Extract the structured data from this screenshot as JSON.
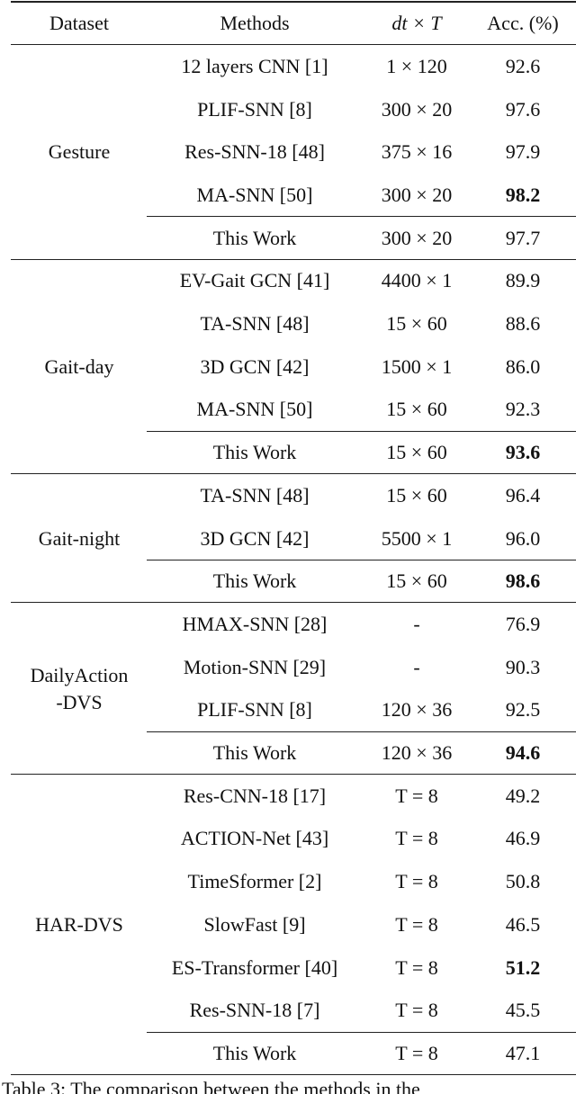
{
  "table": {
    "header": [
      "Dataset",
      "Methods",
      "dt × T",
      "Acc. (%)"
    ],
    "groups": [
      {
        "dataset": [
          "Gesture"
        ],
        "rows": [
          {
            "method": "12 layers CNN [1]",
            "setting": "1 × 120",
            "acc": "92.6",
            "bold": false
          },
          {
            "method": "PLIF-SNN [8]",
            "setting": "300 × 20",
            "acc": "97.6",
            "bold": false
          },
          {
            "method": "Res-SNN-18 [48]",
            "setting": "375 × 16",
            "acc": "97.9",
            "bold": false
          },
          {
            "method": "MA-SNN [50]",
            "setting": "300 × 20",
            "acc": "98.2",
            "bold": true
          },
          {
            "method": "This Work",
            "setting": "300 × 20",
            "acc": "97.7",
            "bold": false
          }
        ]
      },
      {
        "dataset": [
          "Gait-day"
        ],
        "rows": [
          {
            "method": "EV-Gait GCN [41]",
            "setting": "4400 × 1",
            "acc": "89.9",
            "bold": false
          },
          {
            "method": "TA-SNN [48]",
            "setting": "15 × 60",
            "acc": "88.6",
            "bold": false
          },
          {
            "method": "3D GCN [42]",
            "setting": "1500 × 1",
            "acc": "86.0",
            "bold": false
          },
          {
            "method": "MA-SNN [50]",
            "setting": "15 × 60",
            "acc": "92.3",
            "bold": false
          },
          {
            "method": "This Work",
            "setting": "15 × 60",
            "acc": "93.6",
            "bold": true
          }
        ]
      },
      {
        "dataset": [
          "Gait-night"
        ],
        "rows": [
          {
            "method": "TA-SNN [48]",
            "setting": "15 × 60",
            "acc": "96.4",
            "bold": false
          },
          {
            "method": "3D GCN [42]",
            "setting": "5500 × 1",
            "acc": "96.0",
            "bold": false
          },
          {
            "method": "This Work",
            "setting": "15 × 60",
            "acc": "98.6",
            "bold": true
          }
        ]
      },
      {
        "dataset": [
          "DailyAction",
          "-DVS"
        ],
        "rows": [
          {
            "method": "HMAX-SNN [28]",
            "setting": "-",
            "acc": "76.9",
            "bold": false
          },
          {
            "method": "Motion-SNN [29]",
            "setting": "-",
            "acc": "90.3",
            "bold": false
          },
          {
            "method": "PLIF-SNN [8]",
            "setting": "120 × 36",
            "acc": "92.5",
            "bold": false
          },
          {
            "method": "This Work",
            "setting": "120 × 36",
            "acc": "94.6",
            "bold": true
          }
        ]
      },
      {
        "dataset": [
          "HAR-DVS"
        ],
        "rows": [
          {
            "method": "Res-CNN-18 [17]",
            "setting": "T = 8",
            "acc": "49.2",
            "bold": false
          },
          {
            "method": "ACTION-Net [43]",
            "setting": "T = 8",
            "acc": "46.9",
            "bold": false
          },
          {
            "method": "TimeSformer [2]",
            "setting": "T = 8",
            "acc": "50.8",
            "bold": false
          },
          {
            "method": "SlowFast [9]",
            "setting": "T = 8",
            "acc": "46.5",
            "bold": false
          },
          {
            "method": "ES-Transformer [40]",
            "setting": "T = 8",
            "acc": "51.2",
            "bold": true
          },
          {
            "method": "Res-SNN-18 [7]",
            "setting": "T = 8",
            "acc": "45.5",
            "bold": false
          },
          {
            "method": "This Work",
            "setting": "T = 8",
            "acc": "47.1",
            "bold": false
          }
        ]
      }
    ],
    "caption": "Table 3: The comparison between the methods in the"
  }
}
